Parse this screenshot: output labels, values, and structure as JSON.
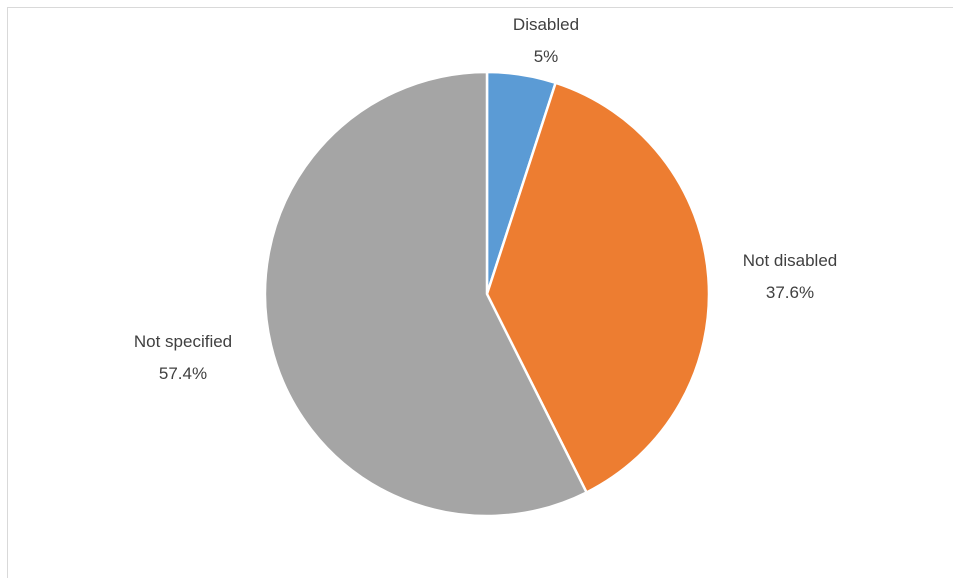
{
  "chart_data": {
    "type": "pie",
    "slices": [
      {
        "label": "Disabled",
        "value": 5,
        "display": "5%",
        "color": "#5b9bd5"
      },
      {
        "label": "Not disabled",
        "value": 37.6,
        "display": "37.6%",
        "color": "#ed7d31"
      },
      {
        "label": "Not specified",
        "value": 57.4,
        "display": "57.4%",
        "color": "#a5a5a5"
      }
    ],
    "start_angle": "12 o'clock",
    "direction": "clockwise",
    "slice_border_color": "#ffffff",
    "legend": "none",
    "data_labels": "outside end (category name and percentage)"
  }
}
